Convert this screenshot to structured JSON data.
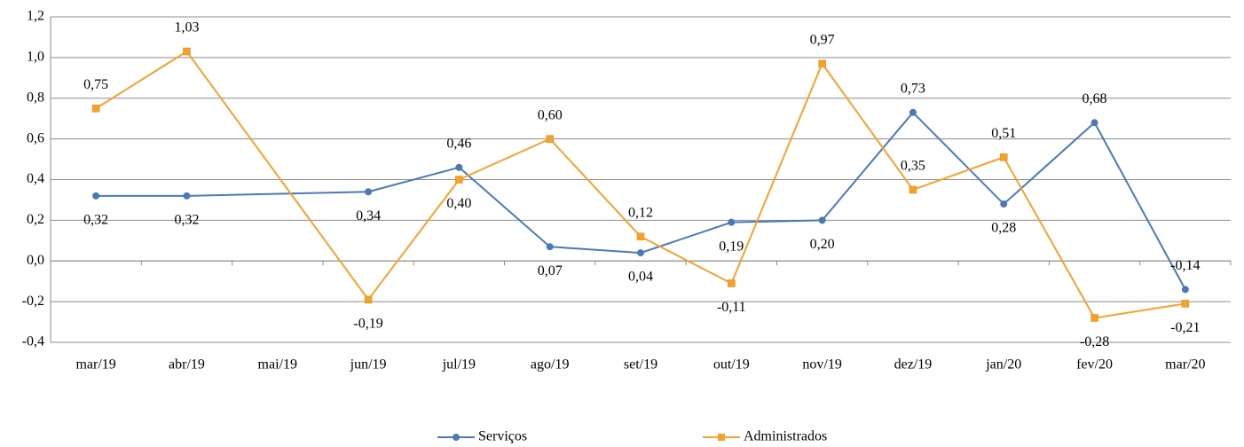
{
  "chart_data": {
    "type": "line",
    "categories": [
      "mar/19",
      "abr/19",
      "mai/19",
      "jun/19",
      "jul/19",
      "ago/19",
      "set/19",
      "out/19",
      "nov/19",
      "dez/19",
      "jan/20",
      "fev/20",
      "mar/20"
    ],
    "series": [
      {
        "name": "Serviços",
        "color": "#4a7ab5",
        "values": [
          0.32,
          0.32,
          null,
          0.34,
          0.46,
          0.07,
          0.04,
          0.19,
          0.2,
          0.73,
          0.28,
          0.68,
          -0.14
        ],
        "value_labels": [
          "0,32",
          "0,32",
          null,
          "0,34",
          "0,46",
          "0,07",
          "0,04",
          "0,19",
          "0,20",
          "0,73",
          "0,28",
          "0,68",
          "-0,14"
        ]
      },
      {
        "name": "Administrados",
        "color": "#f5a22c",
        "values": [
          0.75,
          1.03,
          null,
          -0.19,
          0.4,
          0.6,
          0.12,
          -0.11,
          0.97,
          0.35,
          0.51,
          -0.28,
          -0.21
        ],
        "value_labels": [
          "0,75",
          "1,03",
          null,
          "-0,19",
          "0,40",
          "0,60",
          "0,12",
          "-0,11",
          "0,97",
          "0,35",
          "0,51",
          "-0,28",
          "-0,21"
        ]
      }
    ],
    "ylim": [
      -0.4,
      1.2
    ],
    "yticks": [
      {
        "value": -0.4,
        "label": "-0,4"
      },
      {
        "value": -0.2,
        "label": "-0,2"
      },
      {
        "value": 0,
        "label": "0,0"
      },
      {
        "value": 0.2,
        "label": "0,2"
      },
      {
        "value": 0.4,
        "label": "0,4"
      },
      {
        "value": 0.6,
        "label": "0,6"
      },
      {
        "value": 0.8,
        "label": "0,8"
      },
      {
        "value": 1.0,
        "label": "1,0"
      },
      {
        "value": 1.2,
        "label": "1,2"
      }
    ],
    "grid": true,
    "span_gaps": true,
    "legend": "bottom",
    "negative_label_color": "#ff0000"
  }
}
